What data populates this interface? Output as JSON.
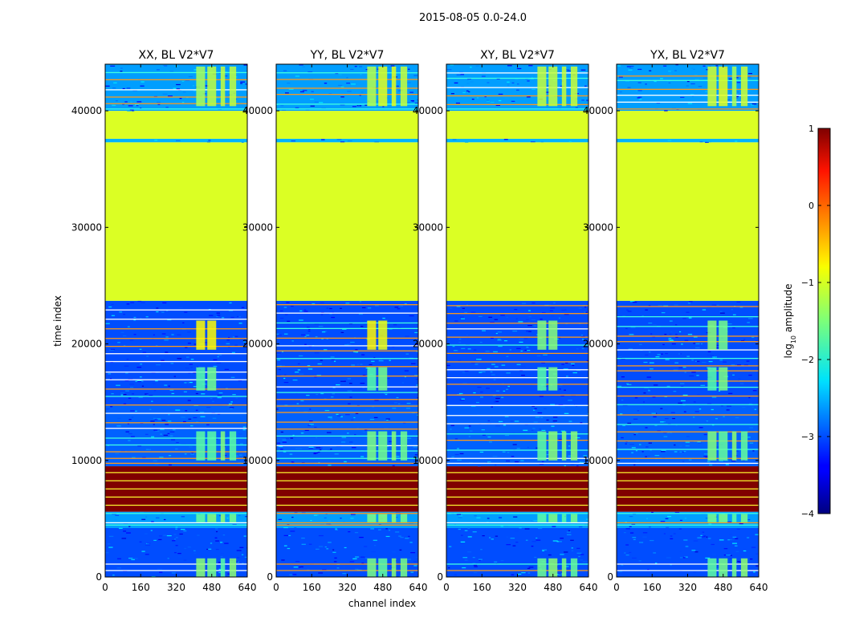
{
  "figure": {
    "suptitle": "2015-08-05 0.0-24.0",
    "xlabel": "channel index",
    "ylabel": "time index"
  },
  "chart_data": {
    "type": "heatmap",
    "panels": [
      {
        "title": "XX, BL V2*V7",
        "visible_y_ticks": [
          "0",
          "10000",
          "20000",
          "30000",
          "40000"
        ]
      },
      {
        "title": "YY, BL V2*V7",
        "visible_y_ticks": [
          "0",
          "10000",
          "20000",
          "30000",
          "40000"
        ]
      },
      {
        "title": "XY, BL V2*V7",
        "visible_y_ticks": [
          "0",
          "10000",
          "20000",
          "30000",
          "40000"
        ]
      },
      {
        "title": "YX, BL V2*V7",
        "visible_y_ticks": [
          "0",
          "10000",
          "20000",
          "30000",
          "40000"
        ]
      }
    ],
    "x_ticks": [
      0,
      160,
      320,
      480,
      640
    ],
    "x_tick_labels": [
      "0",
      "160",
      "320",
      "480",
      "640"
    ],
    "y_ticks": [
      0,
      10000,
      20000,
      30000,
      40000
    ],
    "y_tick_labels": [
      "0",
      "10000",
      "20000",
      "30000",
      "40000"
    ],
    "xlim": [
      0,
      640
    ],
    "ylim": [
      0,
      44000
    ],
    "colorbar": {
      "label": "log10 amplitude",
      "label_main": "log",
      "label_sub": "10",
      "label_rest": " amplitude",
      "ticks": [
        1,
        0,
        -1,
        -2,
        -3,
        -4
      ],
      "tick_labels": [
        "1",
        "0",
        "−1",
        "−2",
        "−3",
        "−4"
      ],
      "range": [
        -4,
        1
      ],
      "colormap": "jet"
    },
    "bands": [
      {
        "y0": 0,
        "y1": 4200,
        "value": -3.0
      },
      {
        "y0": 4200,
        "y1": 5600,
        "value": -2.6
      },
      {
        "y0": 5600,
        "y1": 9500,
        "value": 1.0
      },
      {
        "y0": 9500,
        "y1": 14800,
        "value": -2.9
      },
      {
        "y0": 14800,
        "y1": 23700,
        "value": -3.0
      },
      {
        "y0": 23700,
        "y1": 37300,
        "value": -1.05
      },
      {
        "y0": 37300,
        "y1": 37600,
        "value": -2.5
      },
      {
        "y0": 37600,
        "y1": 40000,
        "value": -1.05
      },
      {
        "y0": 40000,
        "y1": 44000,
        "value": -2.6
      }
    ],
    "colors": {
      "high": "#7f0000",
      "flagged": "#9bff5b",
      "base": "#0a28e8",
      "line": "#ff9a1a",
      "cyan": "#40ffe0"
    }
  }
}
